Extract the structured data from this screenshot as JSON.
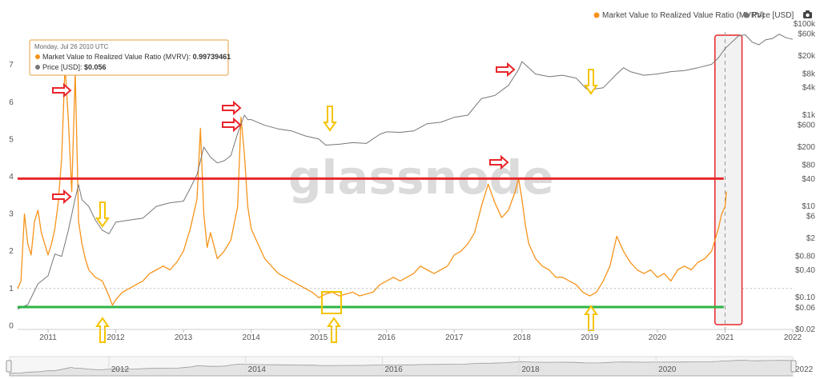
{
  "chart_data": {
    "type": "line",
    "watermark": "glassnode",
    "legend": [
      {
        "label": "Market Value to Realized Value Ratio (MVRV)",
        "color": "#f7931a"
      },
      {
        "label": "Price [USD]",
        "color": "#777777"
      }
    ],
    "x_ticks": [
      "2011",
      "2012",
      "2013",
      "2014",
      "2015",
      "2016",
      "2017",
      "2018",
      "2019",
      "2020",
      "2021",
      "2022"
    ],
    "navigator_ticks": [
      "2012",
      "2014",
      "2016",
      "2018",
      "2020",
      "2022"
    ],
    "y_left_ticks": [
      "0",
      "1",
      "2",
      "3",
      "4",
      "5",
      "6",
      "7"
    ],
    "y_right_ticks": [
      "$0.02",
      "$0.06",
      "$0.10",
      "$0.40",
      "$0.80",
      "$2",
      "$6",
      "$10",
      "$40",
      "$80",
      "$200",
      "$600",
      "$1k",
      "$4k",
      "$8k",
      "$20k",
      "$60k",
      "$100k"
    ],
    "xlim": [
      2010.55,
      2022.0
    ],
    "ylim_left": [
      -0.1,
      8.1
    ],
    "ylim_right": [
      0.02,
      100000
    ],
    "y_right_scale": "log",
    "reference_lines": [
      {
        "name": "upper",
        "value": 3.95,
        "color": "#e8262b"
      },
      {
        "name": "lower",
        "value": 0.5,
        "color": "#2fb344"
      }
    ],
    "highlight_region": {
      "x": [
        2020.85,
        2021.25
      ],
      "color": "#e8262b"
    },
    "series": [
      {
        "name": "Market Value to Realized Value Ratio (MVRV)",
        "color": "#f7931a",
        "axis": "left",
        "x": [
          2010.55,
          2010.6,
          2010.65,
          2010.7,
          2010.75,
          2010.8,
          2010.85,
          2010.9,
          2010.95,
          2011.0,
          2011.05,
          2011.1,
          2011.15,
          2011.2,
          2011.25,
          2011.3,
          2011.35,
          2011.4,
          2011.43,
          2011.45,
          2011.5,
          2011.55,
          2011.6,
          2011.7,
          2011.8,
          2011.9,
          2011.95,
          2012.0,
          2012.1,
          2012.2,
          2012.3,
          2012.4,
          2012.5,
          2012.6,
          2012.7,
          2012.8,
          2012.9,
          2013.0,
          2013.1,
          2013.2,
          2013.25,
          2013.3,
          2013.35,
          2013.4,
          2013.5,
          2013.6,
          2013.7,
          2013.8,
          2013.85,
          2013.9,
          2013.95,
          2014.0,
          2014.1,
          2014.2,
          2014.3,
          2014.4,
          2014.5,
          2014.6,
          2014.7,
          2014.8,
          2014.9,
          2015.0,
          2015.05,
          2015.1,
          2015.2,
          2015.3,
          2015.4,
          2015.5,
          2015.6,
          2015.7,
          2015.8,
          2015.9,
          2016.0,
          2016.1,
          2016.2,
          2016.3,
          2016.4,
          2016.5,
          2016.6,
          2016.7,
          2016.8,
          2016.9,
          2017.0,
          2017.1,
          2017.2,
          2017.3,
          2017.4,
          2017.5,
          2017.6,
          2017.7,
          2017.8,
          2017.9,
          2017.95,
          2018.0,
          2018.05,
          2018.1,
          2018.2,
          2018.3,
          2018.4,
          2018.5,
          2018.6,
          2018.7,
          2018.8,
          2018.9,
          2019.0,
          2019.1,
          2019.2,
          2019.3,
          2019.4,
          2019.5,
          2019.6,
          2019.7,
          2019.8,
          2019.9,
          2020.0,
          2020.1,
          2020.2,
          2020.3,
          2020.4,
          2020.5,
          2020.6,
          2020.7,
          2020.8,
          2020.9,
          2020.95,
          2021.0,
          2021.02
        ],
        "values": [
          1.0,
          1.2,
          3.0,
          2.2,
          1.9,
          2.8,
          3.1,
          2.5,
          2.2,
          1.9,
          2.2,
          2.6,
          3.3,
          4.5,
          7.0,
          5.5,
          3.6,
          6.8,
          4.5,
          2.8,
          2.2,
          1.8,
          1.5,
          1.3,
          1.2,
          0.8,
          0.55,
          0.7,
          0.9,
          1.0,
          1.1,
          1.2,
          1.4,
          1.5,
          1.6,
          1.5,
          1.7,
          2.0,
          2.6,
          3.4,
          5.3,
          3.0,
          2.1,
          2.5,
          1.8,
          2.0,
          2.3,
          3.2,
          5.6,
          4.6,
          3.2,
          2.6,
          2.2,
          1.8,
          1.6,
          1.4,
          1.3,
          1.2,
          1.1,
          1.0,
          0.9,
          0.75,
          0.8,
          0.85,
          0.9,
          0.8,
          0.85,
          0.9,
          0.8,
          0.85,
          0.9,
          1.1,
          1.2,
          1.3,
          1.2,
          1.3,
          1.4,
          1.6,
          1.5,
          1.4,
          1.5,
          1.6,
          1.9,
          2.0,
          2.2,
          2.5,
          3.2,
          3.8,
          3.3,
          2.9,
          3.1,
          3.6,
          3.95,
          3.4,
          2.7,
          2.2,
          1.8,
          1.6,
          1.5,
          1.3,
          1.3,
          1.2,
          1.1,
          0.9,
          0.8,
          0.9,
          1.2,
          1.6,
          2.4,
          2.0,
          1.7,
          1.5,
          1.4,
          1.5,
          1.3,
          1.4,
          1.2,
          1.5,
          1.6,
          1.5,
          1.7,
          1.8,
          2.0,
          2.6,
          3.0,
          3.2,
          3.6
        ]
      },
      {
        "name": "Price [USD]",
        "color": "#777777",
        "axis": "right",
        "x": [
          2010.55,
          2010.7,
          2010.85,
          2011.0,
          2011.1,
          2011.2,
          2011.3,
          2011.4,
          2011.45,
          2011.5,
          2011.6,
          2011.7,
          2011.8,
          2011.9,
          2012.0,
          2012.2,
          2012.4,
          2012.6,
          2012.8,
          2013.0,
          2013.1,
          2013.2,
          2013.25,
          2013.3,
          2013.4,
          2013.5,
          2013.6,
          2013.7,
          2013.8,
          2013.9,
          2013.95,
          2014.0,
          2014.2,
          2014.4,
          2014.6,
          2014.8,
          2015.0,
          2015.1,
          2015.3,
          2015.5,
          2015.7,
          2015.9,
          2016.0,
          2016.2,
          2016.4,
          2016.6,
          2016.8,
          2017.0,
          2017.2,
          2017.4,
          2017.6,
          2017.8,
          2017.95,
          2018.0,
          2018.1,
          2018.2,
          2018.4,
          2018.6,
          2018.8,
          2018.95,
          2019.0,
          2019.2,
          2019.4,
          2019.5,
          2019.6,
          2019.8,
          2020.0,
          2020.2,
          2020.4,
          2020.6,
          2020.8,
          2020.9,
          2021.0,
          2021.1,
          2021.2,
          2021.3,
          2021.4,
          2021.5,
          2021.6,
          2021.7,
          2021.8,
          2021.9,
          2022.0
        ],
        "values": [
          0.056,
          0.07,
          0.2,
          0.3,
          0.9,
          0.8,
          3.0,
          15,
          30,
          14,
          10,
          5,
          3.0,
          2.5,
          4.5,
          5.0,
          5.5,
          10,
          12,
          13,
          25,
          50,
          100,
          200,
          120,
          90,
          100,
          130,
          400,
          1000,
          800,
          800,
          600,
          500,
          450,
          350,
          300,
          220,
          230,
          250,
          240,
          380,
          430,
          420,
          450,
          650,
          700,
          900,
          1000,
          2300,
          2700,
          4500,
          10000,
          15000,
          11000,
          8000,
          7000,
          7500,
          6500,
          3800,
          3600,
          4000,
          8000,
          11000,
          9000,
          7500,
          8000,
          9000,
          9500,
          11000,
          13000,
          18000,
          29000,
          40000,
          55000,
          58000,
          40000,
          35000,
          45000,
          48000,
          60000,
          50000,
          46000
        ]
      }
    ]
  },
  "tooltip": {
    "date": "Monday, Jul 26 2010 UTC",
    "mvrv_label": "Market Value to Realized Value Ratio (MVRV)",
    "mvrv_value": "0.99739461",
    "price_label": "Price [USD]",
    "price_value": "$0.056"
  },
  "annotations": {
    "red_arrow_color": "#e8262b",
    "yellow_arrow_color": "#f5c400",
    "green_line_color": "#2fb344",
    "red_line_color": "#e8262b"
  },
  "camera_icon": "camera-icon"
}
